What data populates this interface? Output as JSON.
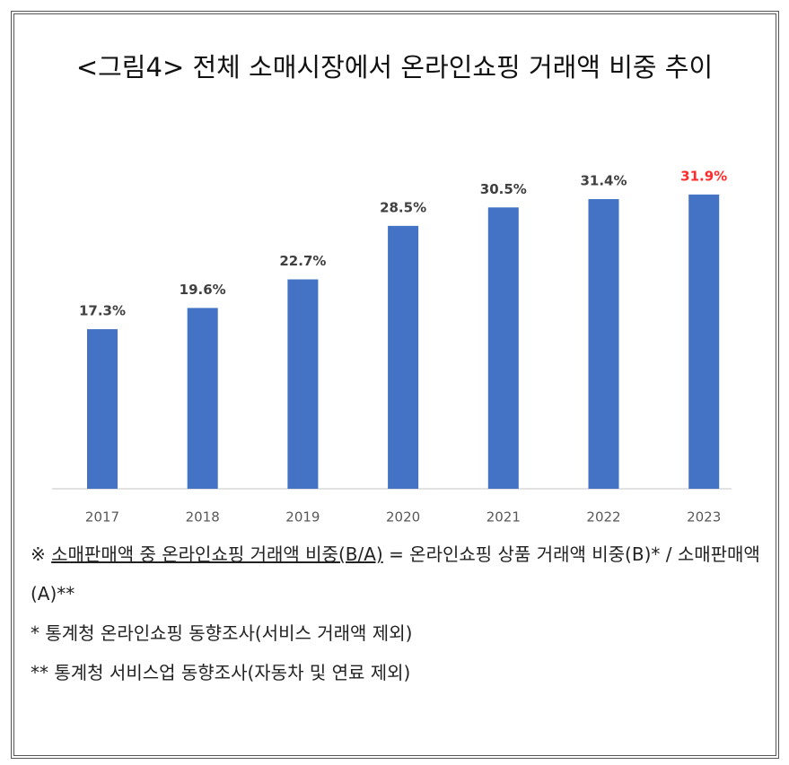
{
  "chart_data": {
    "type": "bar",
    "title": "<그림4> 전체 소매시장에서 온라인쇼핑 거래액 비중 추이",
    "categories": [
      "2017",
      "2018",
      "2019",
      "2020",
      "2021",
      "2022",
      "2023"
    ],
    "values": [
      17.3,
      19.6,
      22.7,
      28.5,
      30.5,
      31.4,
      31.9
    ],
    "value_labels": [
      "17.3%",
      "19.6%",
      "22.7%",
      "28.5%",
      "30.5%",
      "31.4%",
      "31.9%"
    ],
    "value_label_colors": [
      "#404040",
      "#404040",
      "#404040",
      "#404040",
      "#404040",
      "#404040",
      "#ff2a2a"
    ],
    "color": "#4472c4",
    "ylim": [
      0,
      35
    ]
  },
  "notes": {
    "formula": {
      "mark": "※",
      "underlined": "소매판매액 중 온라인쇼핑 거래액 비중(B/A)",
      "text": "= 온라인쇼핑 상품 거래액 비중(B)* / 소매판매액(A)**"
    },
    "lines": [
      "* 통계청 온라인쇼핑 동향조사(서비스 거래액 제외)",
      "** 통계청 서비스업 동향조사(자동차 및 연료 제외)"
    ]
  }
}
